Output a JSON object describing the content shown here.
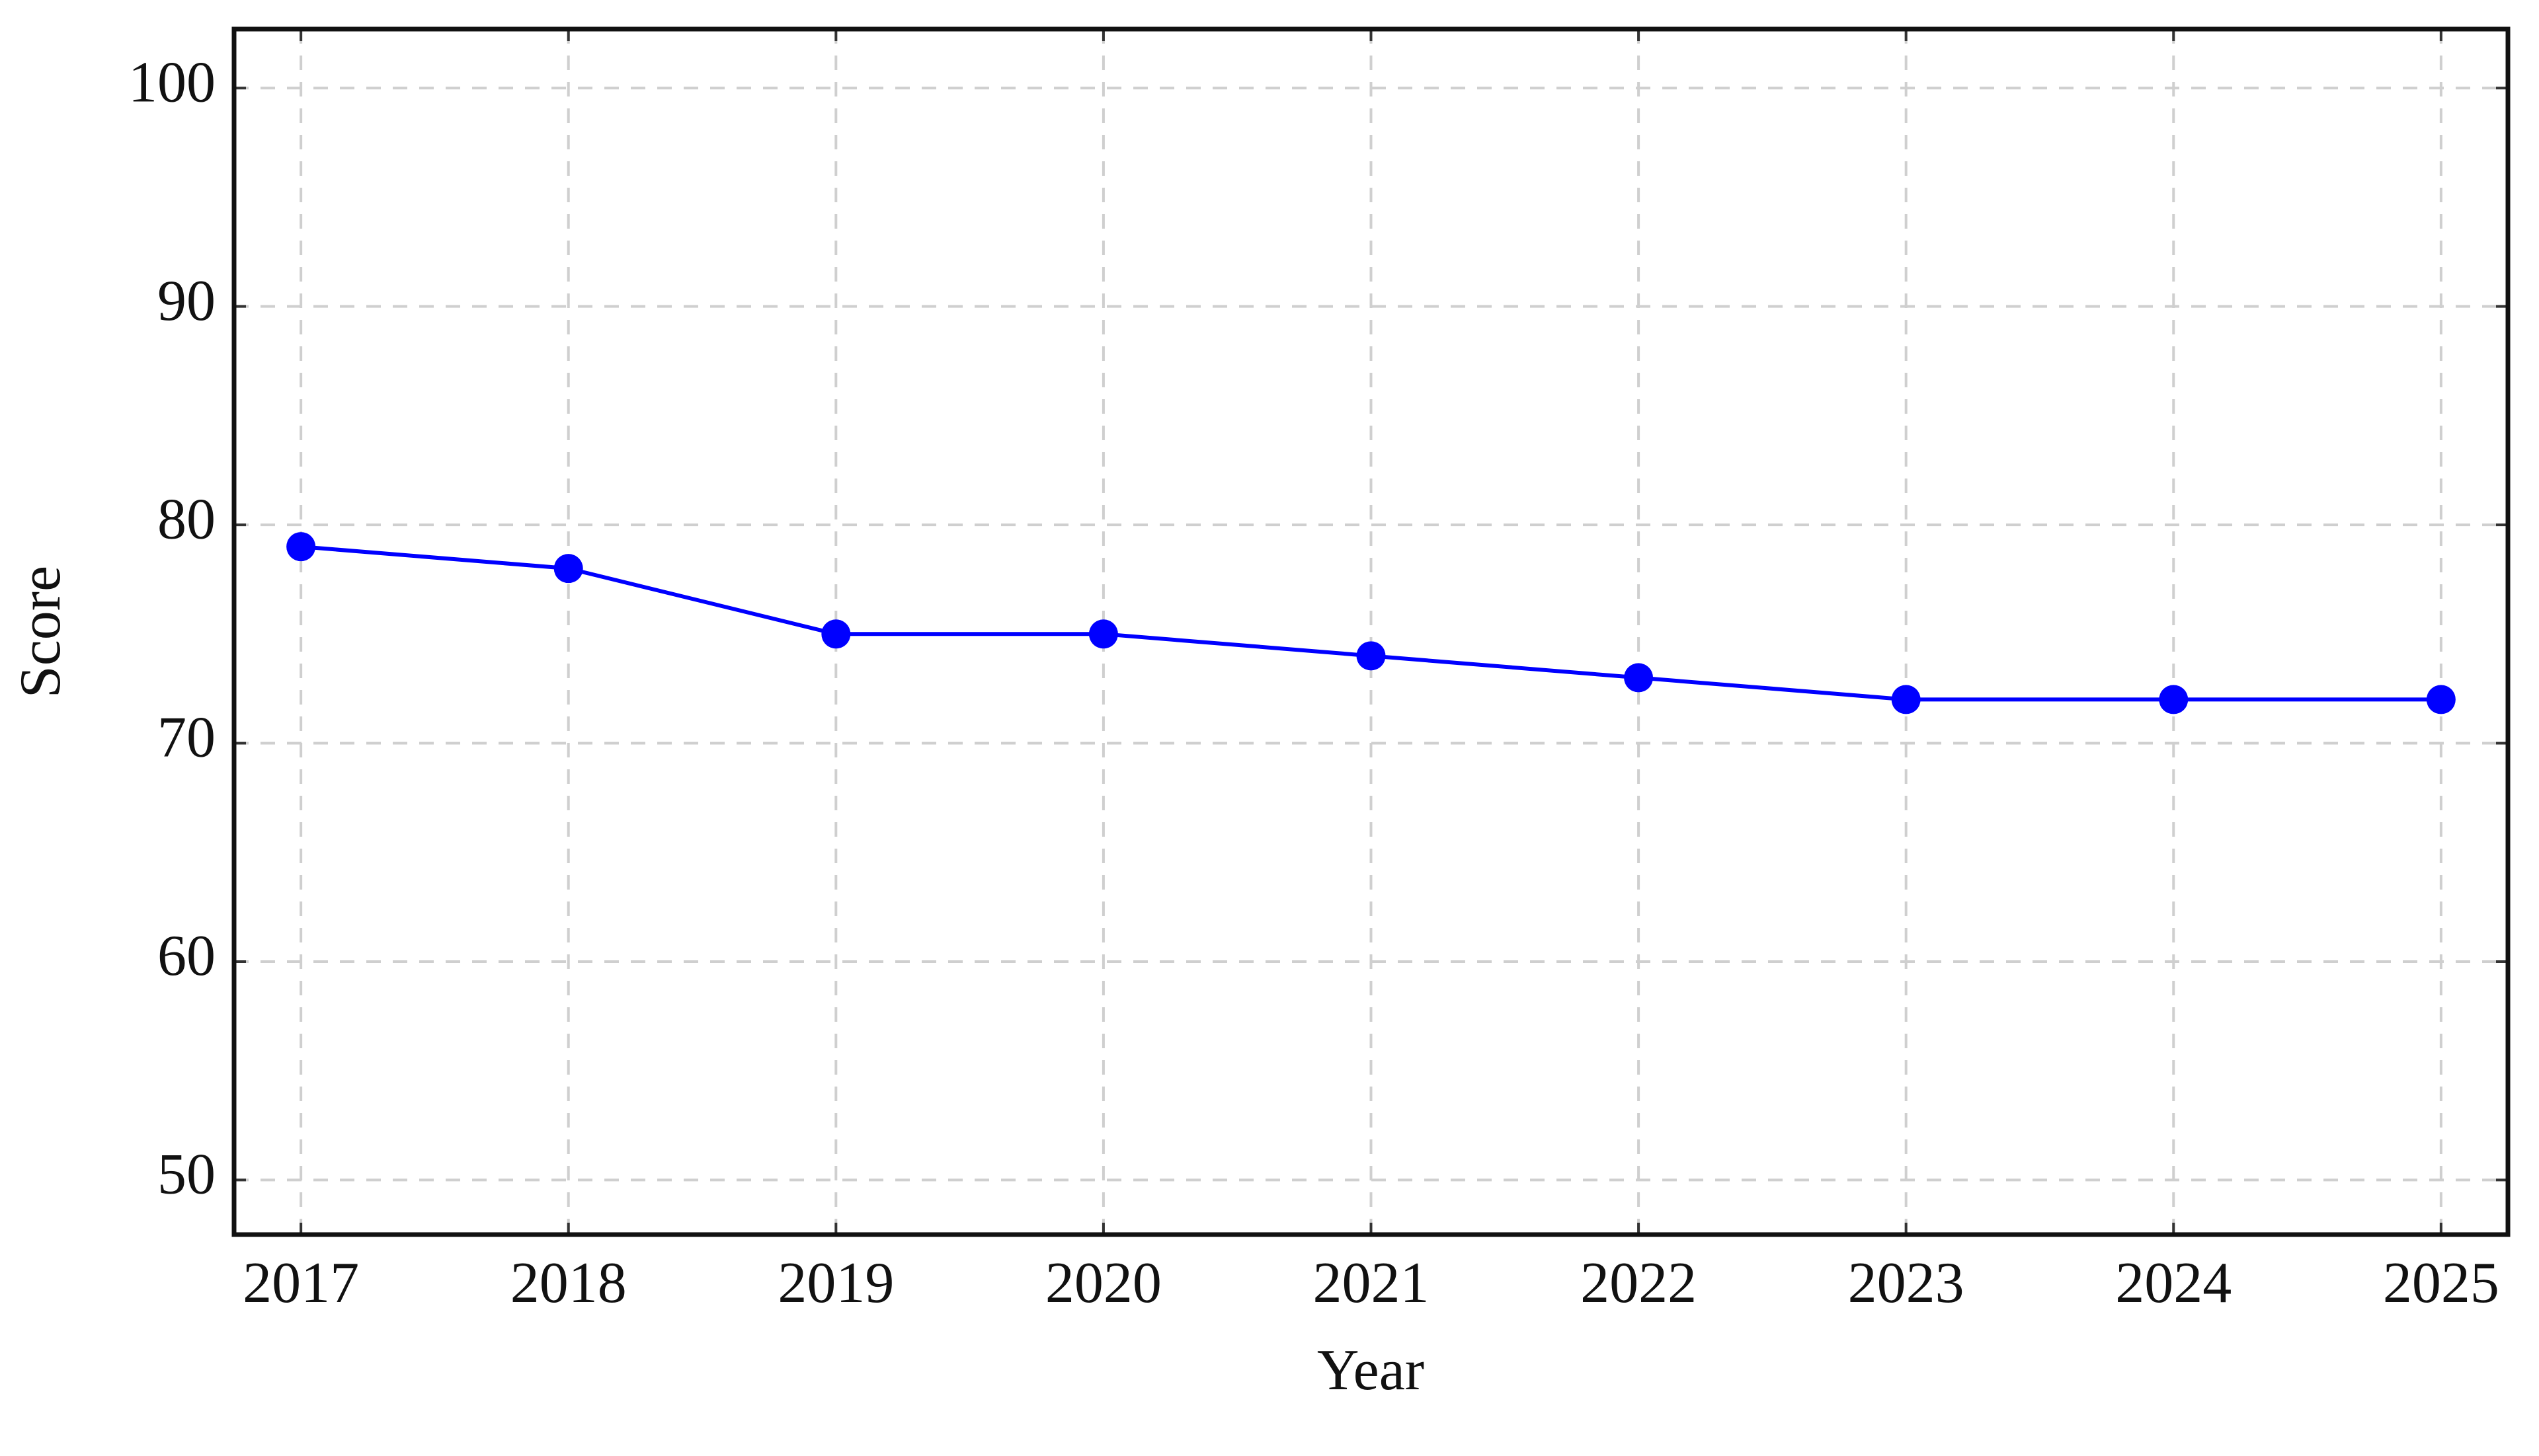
{
  "chart_data": {
    "type": "line",
    "x_label": "Year",
    "y_label": "Score",
    "x": [
      2017,
      2018,
      2019,
      2020,
      2021,
      2022,
      2023,
      2024,
      2025
    ],
    "series": [
      {
        "color": "#0000ff",
        "values": [
          79,
          78,
          75,
          75,
          74,
          73,
          72,
          72,
          72
        ]
      }
    ],
    "xlim": [
      2016.75,
      2025.25
    ],
    "xticks": [
      2017,
      2018,
      2019,
      2020,
      2021,
      2022,
      2023,
      2024,
      2025
    ],
    "ylim": [
      47.5,
      102.7
    ],
    "yticks": [
      50,
      60,
      70,
      80,
      90,
      100
    ],
    "grid": true
  }
}
